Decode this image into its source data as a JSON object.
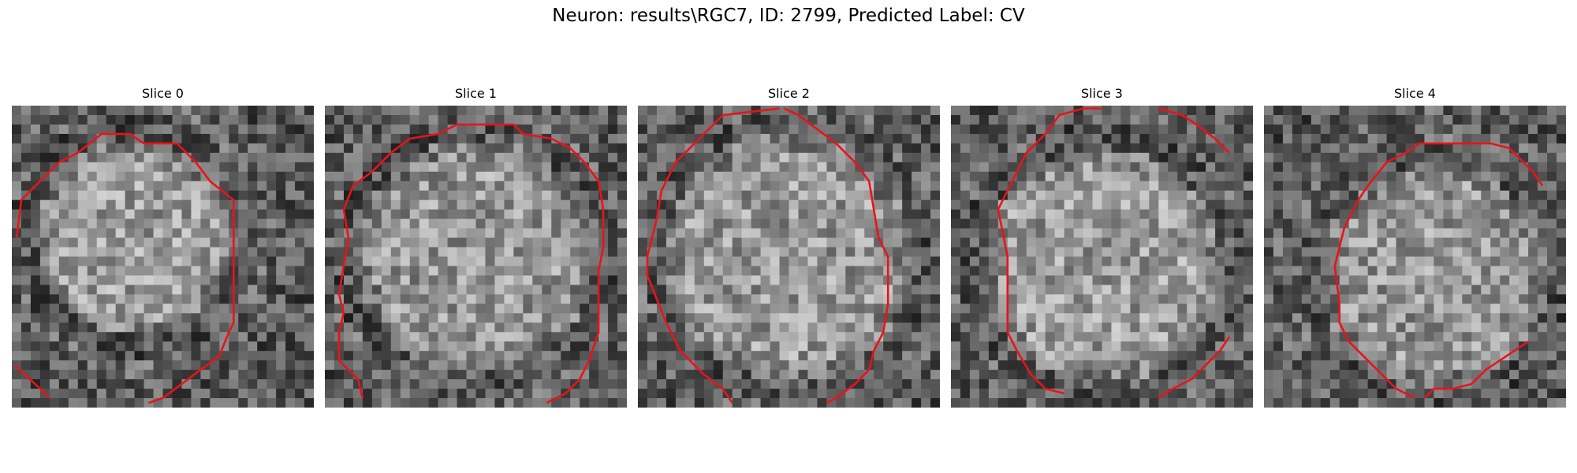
{
  "figure": {
    "title": "Neuron: results\\RGC7, ID: 2799, Predicted Label: CV"
  },
  "panels": [
    {
      "title": "Slice 0"
    },
    {
      "title": "Slice 1"
    },
    {
      "title": "Slice 2"
    },
    {
      "title": "Slice 3"
    },
    {
      "title": "Slice 4"
    }
  ],
  "colors": {
    "contour": "#e8141a",
    "background": "#ffffff"
  }
}
